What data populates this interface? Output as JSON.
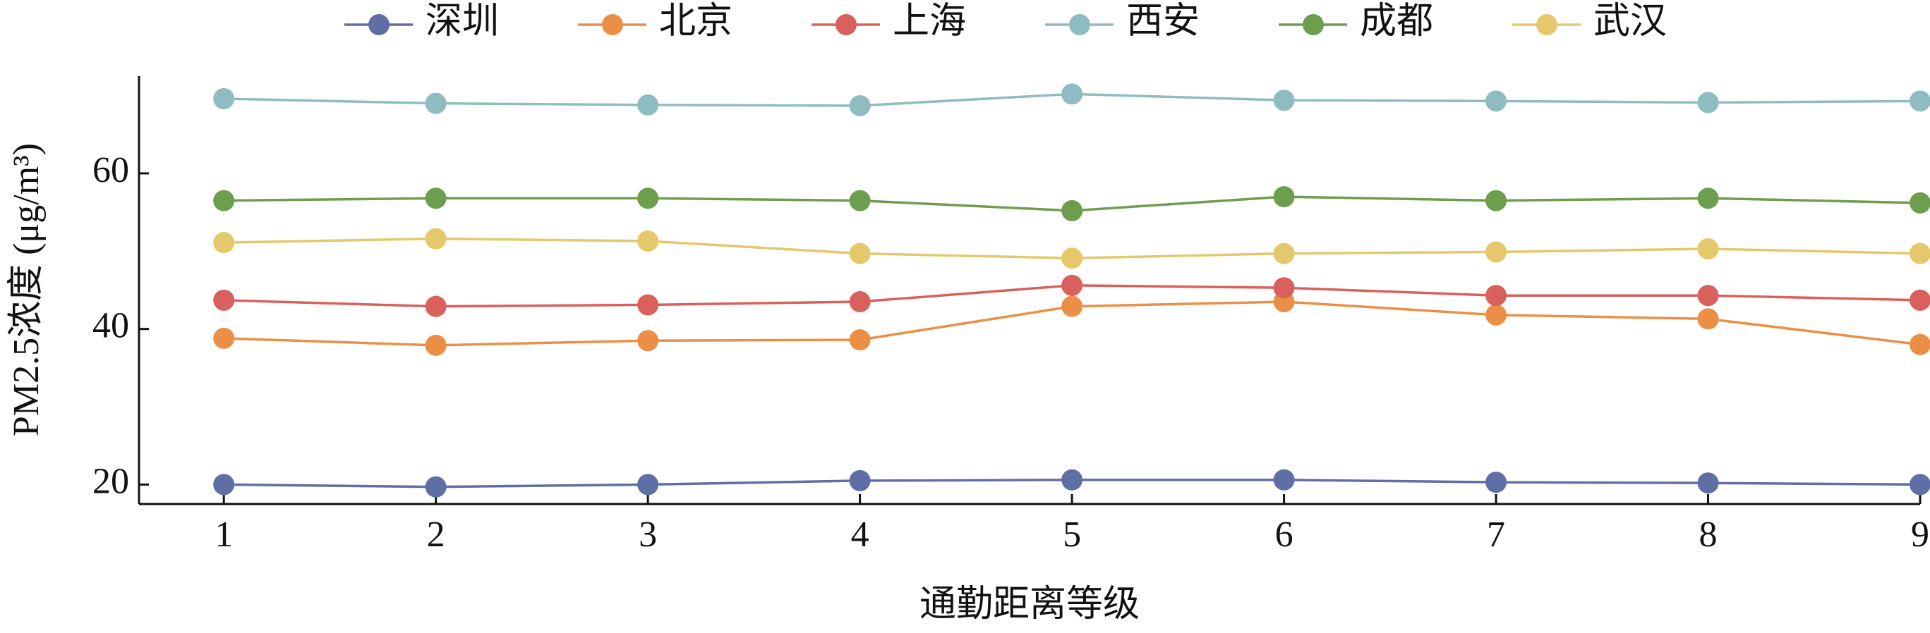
{
  "chart_data": {
    "type": "line",
    "x_label": "通勤距离等级",
    "y_label": "PM2.5浓度 (μg/m³)",
    "x": [
      1,
      2,
      3,
      4,
      5,
      6,
      7,
      8,
      9
    ],
    "xlim": [
      0.6,
      9.0
    ],
    "xticks": [
      1,
      2,
      3,
      4,
      5,
      6,
      7,
      8,
      9
    ],
    "ylim": [
      17.5,
      72.5
    ],
    "yticks": [
      20,
      40,
      60
    ],
    "series": [
      {
        "name": "深圳",
        "color": "#5f6fa6",
        "values": [
          20,
          19.7,
          20,
          20.5,
          20.6,
          20.6,
          20.3,
          20.2,
          20
        ]
      },
      {
        "name": "北京",
        "color": "#ea8f45",
        "values": [
          38.8,
          37.9,
          38.5,
          38.6,
          42.9,
          43.5,
          41.8,
          41.3,
          38.0
        ]
      },
      {
        "name": "上海",
        "color": "#d9605c",
        "values": [
          43.7,
          42.9,
          43.1,
          43.5,
          45.6,
          45.3,
          44.3,
          44.3,
          43.7
        ]
      },
      {
        "name": "西安",
        "color": "#8fbcc0",
        "values": [
          69.6,
          69.0,
          68.8,
          68.7,
          70.2,
          69.4,
          69.3,
          69.1,
          69.3
        ]
      },
      {
        "name": "成都",
        "color": "#6d9e4e",
        "values": [
          56.5,
          56.8,
          56.8,
          56.5,
          55.2,
          57.0,
          56.5,
          56.8,
          56.2
        ]
      },
      {
        "name": "武汉",
        "color": "#e5c86b",
        "values": [
          51.1,
          51.6,
          51.3,
          49.7,
          49.1,
          49.7,
          49.9,
          50.3,
          49.7
        ]
      }
    ]
  }
}
